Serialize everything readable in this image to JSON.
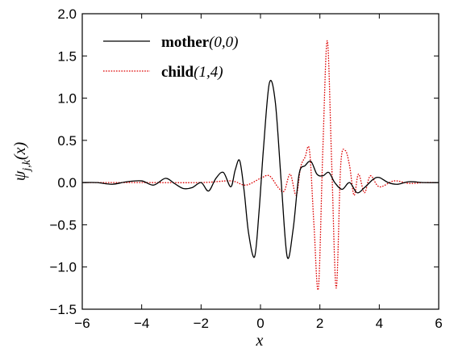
{
  "chart_data": {
    "type": "line",
    "title": "",
    "xlabel": "x",
    "ylabel": {
      "main": "ψ",
      "subscript": "j,k",
      "argument": "(x)"
    },
    "xlim": [
      -6,
      6
    ],
    "ylim": [
      -1.5,
      2.0
    ],
    "xticks": [
      -6,
      -4,
      -2,
      0,
      2,
      4,
      6
    ],
    "xtick_labels": [
      "−6",
      "−4",
      "−2",
      "0",
      "2",
      "4",
      "6"
    ],
    "yticks": [
      -1.5,
      -1.0,
      -0.5,
      0.0,
      0.5,
      1.0,
      1.5,
      2.0
    ],
    "ytick_labels": [
      "−1.5",
      "−1.0",
      "−0.5",
      "0.0",
      "0.5",
      "1.0",
      "1.5",
      "2.0"
    ],
    "grid": false,
    "legend_position": "top-left",
    "series": [
      {
        "name": "mother",
        "legend_bold": "mother",
        "legend_params": "(0,0)",
        "color": "#000000",
        "dash": "solid",
        "x": [
          -6.0,
          -5.5,
          -5.0,
          -4.5,
          -4.0,
          -3.6,
          -3.2,
          -2.9,
          -2.6,
          -2.3,
          -2.0,
          -1.75,
          -1.5,
          -1.25,
          -1.0,
          -0.85,
          -0.7,
          -0.55,
          -0.4,
          -0.2,
          -0.05,
          0.1,
          0.3,
          0.5,
          0.7,
          0.9,
          1.1,
          1.3,
          1.5,
          1.7,
          1.9,
          2.1,
          2.3,
          2.5,
          2.75,
          3.0,
          3.25,
          3.5,
          3.8,
          4.0,
          4.3,
          4.6,
          5.0,
          5.5,
          6.0
        ],
        "y": [
          0.0,
          0.0,
          -0.02,
          0.01,
          0.02,
          -0.03,
          0.05,
          -0.01,
          -0.07,
          -0.06,
          0.0,
          -0.1,
          0.05,
          0.12,
          -0.05,
          0.15,
          0.26,
          -0.1,
          -0.6,
          -0.88,
          -0.35,
          0.4,
          1.18,
          0.95,
          0.0,
          -0.88,
          -0.55,
          0.1,
          0.2,
          0.25,
          0.1,
          0.08,
          0.12,
          0.0,
          -0.08,
          0.0,
          -0.12,
          -0.06,
          0.04,
          0.06,
          0.0,
          -0.02,
          0.01,
          0.0,
          0.0
        ]
      },
      {
        "name": "child",
        "legend_bold": "child",
        "legend_params": "(1,4)",
        "color": "#dd0000",
        "dash": "dotted",
        "x": [
          -6.0,
          -4.0,
          -2.0,
          -1.0,
          -0.5,
          0.0,
          0.3,
          0.6,
          0.8,
          1.0,
          1.2,
          1.35,
          1.5,
          1.65,
          1.8,
          1.95,
          2.1,
          2.25,
          2.4,
          2.55,
          2.7,
          2.85,
          3.0,
          3.15,
          3.3,
          3.5,
          3.7,
          4.0,
          4.5,
          5.0,
          5.5,
          6.0
        ],
        "y": [
          0.0,
          0.0,
          0.0,
          0.02,
          -0.03,
          0.05,
          0.08,
          -0.06,
          -0.1,
          0.1,
          -0.15,
          0.18,
          0.3,
          0.38,
          -0.5,
          -1.25,
          0.4,
          1.68,
          0.2,
          -1.25,
          0.2,
          0.38,
          0.2,
          -0.15,
          0.1,
          -0.12,
          0.08,
          -0.05,
          0.02,
          -0.01,
          0.0,
          0.0
        ]
      }
    ]
  }
}
